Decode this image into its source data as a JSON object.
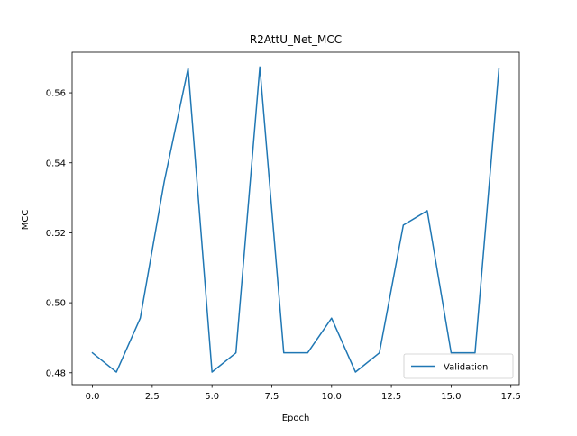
{
  "chart_data": {
    "type": "line",
    "title": "R2AttU_Net_MCC",
    "xlabel": "Epoch",
    "ylabel": "MCC",
    "xlim": [
      -0.85,
      17.85
    ],
    "ylim": [
      0.4766,
      0.5716
    ],
    "xticks": [
      0.0,
      2.5,
      5.0,
      7.5,
      10.0,
      12.5,
      15.0,
      17.5
    ],
    "xtick_labels": [
      "0.0",
      "2.5",
      "5.0",
      "7.5",
      "10.0",
      "12.5",
      "15.0",
      "17.5"
    ],
    "yticks": [
      0.48,
      0.5,
      0.52,
      0.54,
      0.56
    ],
    "ytick_labels": [
      "0.48",
      "0.50",
      "0.52",
      "0.54",
      "0.56"
    ],
    "grid": false,
    "legend": "lower-right",
    "series": [
      {
        "name": "Validation",
        "color": "#1f77b4",
        "x": [
          0,
          1,
          2,
          3,
          4,
          5,
          6,
          7,
          8,
          9,
          10,
          11,
          12,
          13,
          14,
          15,
          16,
          17
        ],
        "y": [
          0.4857,
          0.4802,
          0.4956,
          0.5346,
          0.567,
          0.4802,
          0.4857,
          0.5674,
          0.4857,
          0.4857,
          0.4956,
          0.4802,
          0.4857,
          0.5222,
          0.5263,
          0.4857,
          0.4857,
          0.567
        ]
      }
    ]
  }
}
